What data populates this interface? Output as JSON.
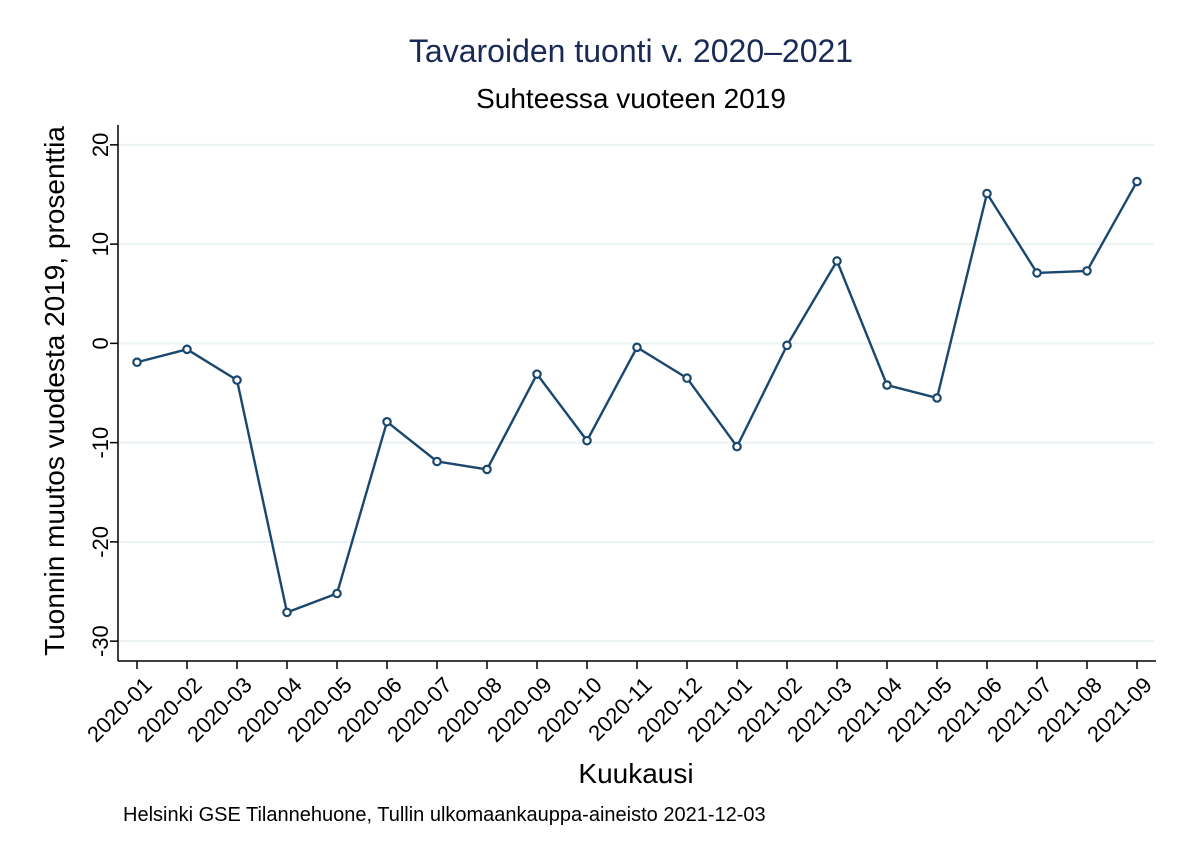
{
  "chart_data": {
    "type": "line",
    "title": "Tavaroiden tuonti v. 2020–2021",
    "subtitle": "Suhteessa vuoteen 2019",
    "xlabel": "Kuukausi",
    "ylabel": "Tuonnin muutos vuodesta 2019, prosenttia",
    "note": "Helsinki GSE Tilannehuone, Tullin ulkomaankauppa-aineisto 2021-12-03",
    "categories": [
      "2020-01",
      "2020-02",
      "2020-03",
      "2020-04",
      "2020-05",
      "2020-06",
      "2020-07",
      "2020-08",
      "2020-09",
      "2020-10",
      "2020-11",
      "2020-12",
      "2021-01",
      "2021-02",
      "2021-03",
      "2021-04",
      "2021-05",
      "2021-06",
      "2021-07",
      "2021-08",
      "2021-09"
    ],
    "values": [
      -1.9,
      -0.6,
      -3.7,
      -27.1,
      -25.2,
      -7.9,
      -11.9,
      -12.7,
      -3.1,
      -9.8,
      -0.4,
      -3.5,
      -10.4,
      -0.2,
      8.3,
      -4.2,
      -5.5,
      15.1,
      7.1,
      7.3,
      16.3
    ],
    "ylim": [
      -32,
      22
    ],
    "yticks": [
      -30,
      -20,
      -10,
      0,
      10,
      20
    ],
    "grid": true,
    "colors": {
      "line": "#1a476f",
      "grid": "#eaf2f3",
      "title": "#1a2a57"
    }
  }
}
